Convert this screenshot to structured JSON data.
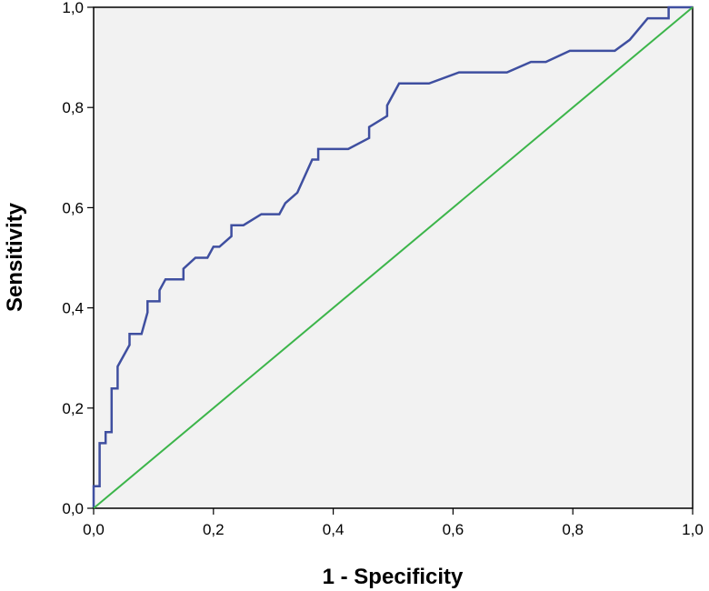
{
  "chart_data": {
    "type": "line",
    "title": "",
    "xlabel": "1 - Specificity",
    "ylabel": "Sensitivity",
    "xlim": [
      0,
      1
    ],
    "ylim": [
      0,
      1
    ],
    "x_ticks": [
      "0,0",
      "0,2",
      "0,4",
      "0,6",
      "0,8",
      "1,0"
    ],
    "y_ticks": [
      "0,0",
      "0,2",
      "0,4",
      "0,6",
      "0,8",
      "1,0"
    ],
    "tick_values": [
      0,
      0.2,
      0.4,
      0.6,
      0.8,
      1.0
    ],
    "grid": false,
    "plot_background": "#f2f2f2",
    "series": [
      {
        "color": "#3f4fa0",
        "step": true,
        "points": [
          [
            0.0,
            0.0
          ],
          [
            0.0,
            0.044
          ],
          [
            0.01,
            0.044
          ],
          [
            0.01,
            0.13
          ],
          [
            0.02,
            0.13
          ],
          [
            0.02,
            0.152
          ],
          [
            0.03,
            0.152
          ],
          [
            0.03,
            0.239
          ],
          [
            0.04,
            0.239
          ],
          [
            0.04,
            0.283
          ],
          [
            0.06,
            0.326
          ],
          [
            0.06,
            0.348
          ],
          [
            0.08,
            0.348
          ],
          [
            0.09,
            0.391
          ],
          [
            0.09,
            0.413
          ],
          [
            0.11,
            0.413
          ],
          [
            0.11,
            0.435
          ],
          [
            0.12,
            0.457
          ],
          [
            0.15,
            0.457
          ],
          [
            0.15,
            0.478
          ],
          [
            0.17,
            0.5
          ],
          [
            0.19,
            0.5
          ],
          [
            0.2,
            0.522
          ],
          [
            0.21,
            0.522
          ],
          [
            0.23,
            0.543
          ],
          [
            0.23,
            0.565
          ],
          [
            0.25,
            0.565
          ],
          [
            0.28,
            0.587
          ],
          [
            0.31,
            0.587
          ],
          [
            0.32,
            0.609
          ],
          [
            0.34,
            0.63
          ],
          [
            0.365,
            0.696
          ],
          [
            0.375,
            0.696
          ],
          [
            0.375,
            0.717
          ],
          [
            0.425,
            0.717
          ],
          [
            0.46,
            0.739
          ],
          [
            0.46,
            0.761
          ],
          [
            0.49,
            0.783
          ],
          [
            0.49,
            0.804
          ],
          [
            0.51,
            0.848
          ],
          [
            0.56,
            0.848
          ],
          [
            0.61,
            0.87
          ],
          [
            0.69,
            0.87
          ],
          [
            0.73,
            0.891
          ],
          [
            0.755,
            0.891
          ],
          [
            0.795,
            0.913
          ],
          [
            0.87,
            0.913
          ],
          [
            0.895,
            0.935
          ],
          [
            0.925,
            0.978
          ],
          [
            0.96,
            0.978
          ],
          [
            0.96,
            1.0
          ],
          [
            1.0,
            1.0
          ]
        ]
      },
      {
        "color": "#3cb54a",
        "points": [
          [
            0,
            0
          ],
          [
            1,
            1
          ]
        ]
      }
    ]
  }
}
